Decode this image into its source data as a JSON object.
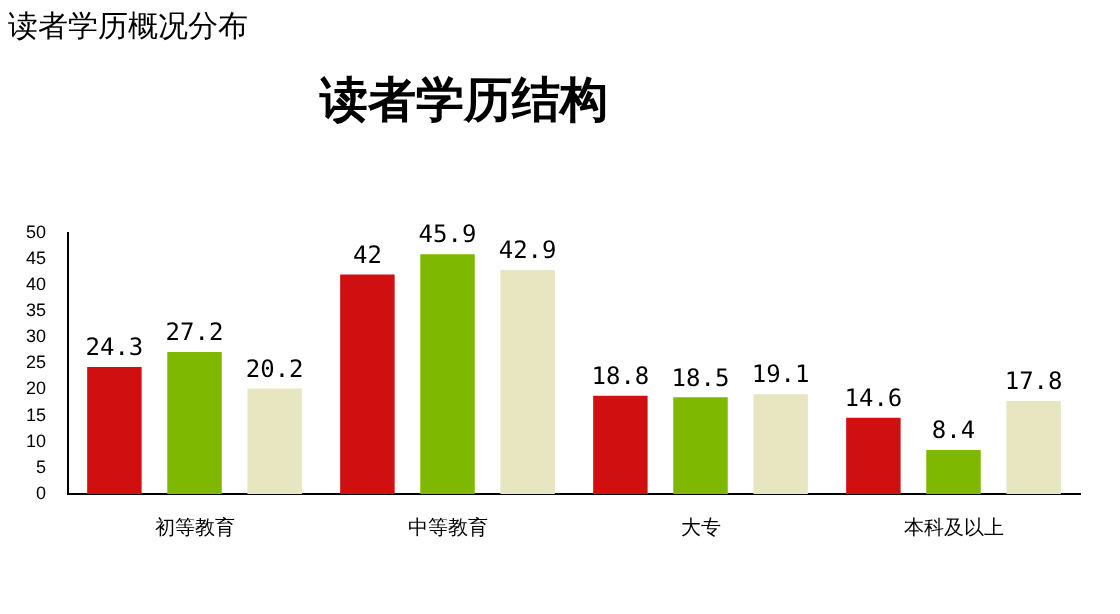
{
  "chart_data": {
    "type": "bar",
    "title": "读者学历结构",
    "annotations": [
      "读者学历概况分布"
    ],
    "categories": [
      "初等教育",
      "中等教育",
      "大专",
      "本科及以上"
    ],
    "series": [
      {
        "color": "#d01010",
        "values": [
          24.3,
          42,
          18.8,
          14.6
        ]
      },
      {
        "color": "#7fb800",
        "values": [
          27.2,
          45.9,
          18.5,
          8.4
        ]
      },
      {
        "color": "#e8e6c0",
        "values": [
          20.2,
          42.9,
          19.1,
          17.8
        ]
      }
    ],
    "ylim": [
      0,
      50
    ],
    "yticks": [
      0,
      5,
      10,
      15,
      20,
      25,
      30,
      35,
      40,
      45,
      50
    ],
    "data_labels": true,
    "grid": false,
    "legend": false
  }
}
